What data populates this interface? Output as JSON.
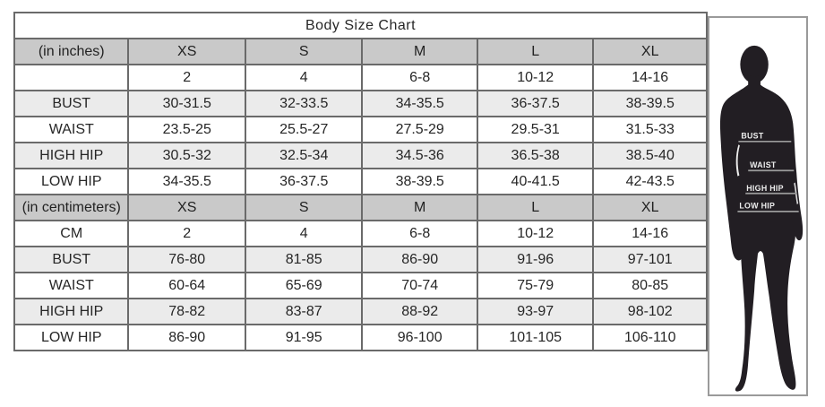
{
  "chart_data": {
    "type": "table",
    "title": "Body Size Chart",
    "sections": [
      {
        "unit_label": "(in inches)",
        "sizes": [
          "XS",
          "S",
          "M",
          "L",
          "XL"
        ],
        "rows": [
          {
            "label": "",
            "values": [
              "2",
              "4",
              "6-8",
              "10-12",
              "14-16"
            ]
          },
          {
            "label": "BUST",
            "values": [
              "30-31.5",
              "32-33.5",
              "34-35.5",
              "36-37.5",
              "38-39.5"
            ]
          },
          {
            "label": "WAIST",
            "values": [
              "23.5-25",
              "25.5-27",
              "27.5-29",
              "29.5-31",
              "31.5-33"
            ]
          },
          {
            "label": "HIGH HIP",
            "values": [
              "30.5-32",
              "32.5-34",
              "34.5-36",
              "36.5-38",
              "38.5-40"
            ]
          },
          {
            "label": "LOW HIP",
            "values": [
              "34-35.5",
              "36-37.5",
              "38-39.5",
              "40-41.5",
              "42-43.5"
            ]
          }
        ]
      },
      {
        "unit_label": "(in centimeters)",
        "sizes": [
          "XS",
          "S",
          "M",
          "L",
          "XL"
        ],
        "rows": [
          {
            "label": "CM",
            "values": [
              "2",
              "4",
              "6-8",
              "10-12",
              "14-16"
            ]
          },
          {
            "label": "BUST",
            "values": [
              "76-80",
              "81-85",
              "86-90",
              "91-96",
              "97-101"
            ]
          },
          {
            "label": "WAIST",
            "values": [
              "60-64",
              "65-69",
              "70-74",
              "75-79",
              "80-85"
            ]
          },
          {
            "label": "HIGH HIP",
            "values": [
              "78-82",
              "83-87",
              "88-92",
              "93-97",
              "98-102"
            ]
          },
          {
            "label": "LOW HIP",
            "values": [
              "86-90",
              "91-95",
              "96-100",
              "101-105",
              "106-110"
            ]
          }
        ]
      }
    ]
  },
  "figure": {
    "labels": [
      "BUST",
      "WAIST",
      "HIGH HIP",
      "LOW HIP"
    ]
  },
  "colors": {
    "header_bg": "#c9c9c9",
    "stripe_bg": "#ebebeb",
    "grid": "#6a6a6a",
    "silhouette": "#221e23"
  }
}
